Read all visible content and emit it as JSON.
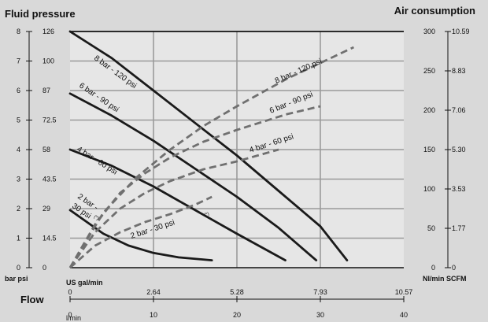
{
  "chart_data": {
    "type": "line",
    "title_left": "Fluid pressure",
    "title_right": "Air consumption",
    "xlabel": "Flow",
    "x_unit_top": "US gal/min",
    "x_unit_bottom": "l/min",
    "y_unit_left": "bar psi",
    "y_unit_right": "Nl/min SCFM",
    "xlim_lpm": [
      0,
      40
    ],
    "ylim_bar": [
      0,
      8
    ],
    "ylim_air_nlmin": [
      0,
      300
    ],
    "x_ticks_lpm": [
      "0",
      "10",
      "20",
      "30",
      "40"
    ],
    "x_ticks_gal": [
      "0",
      "2.64",
      "5.28",
      "7.93",
      "10.57"
    ],
    "y_ticks_bar": [
      "0",
      "1",
      "2",
      "3",
      "4",
      "5",
      "6",
      "7",
      "8"
    ],
    "y_ticks_psi": [
      "0",
      "14.5",
      "29",
      "43.5",
      "58",
      "72.5",
      "87",
      "100",
      "126"
    ],
    "y_ticks_air_nl": [
      "0",
      "50",
      "100",
      "150",
      "200",
      "250",
      "300"
    ],
    "y_ticks_air_scfm": [
      "0",
      "1.77",
      "3.53",
      "5.30",
      "7.06",
      "8.83",
      "10.59"
    ],
    "grid": true,
    "pressure_series": [
      {
        "name": "8 bar - 120 psi",
        "x": [
          0,
          5,
          10,
          15,
          20,
          25,
          30,
          33.2
        ],
        "y": [
          8.0,
          7.1,
          6.0,
          4.9,
          3.8,
          2.6,
          1.4,
          0.25
        ]
      },
      {
        "name": "6 bar - 90 psi",
        "x": [
          0,
          5,
          10,
          15,
          20,
          25,
          29.5
        ],
        "y": [
          5.9,
          5.15,
          4.3,
          3.35,
          2.4,
          1.35,
          0.25
        ]
      },
      {
        "name": "4 bar - 60 psi",
        "x": [
          0,
          5,
          10,
          15,
          20,
          25.8
        ],
        "y": [
          4.0,
          3.45,
          2.75,
          1.95,
          1.15,
          0.25
        ]
      },
      {
        "name": "2 bar - 30 psi",
        "x": [
          0,
          2,
          4,
          7,
          10,
          13,
          17
        ],
        "y": [
          1.95,
          1.55,
          1.15,
          0.75,
          0.5,
          0.35,
          0.25
        ]
      }
    ],
    "air_series": [
      {
        "name": "8 bar - 120 psi",
        "x": [
          0,
          4,
          8,
          12,
          16,
          20,
          26,
          34
        ],
        "y": [
          0,
          70,
          115,
          150,
          180,
          205,
          240,
          280
        ]
      },
      {
        "name": "6 bar - 90 psi",
        "x": [
          0,
          3,
          6,
          9,
          12,
          16,
          20,
          26,
          30
        ],
        "y": [
          0,
          55,
          95,
          120,
          140,
          160,
          175,
          195,
          205
        ]
      },
      {
        "name": "4 bar - 60 psi",
        "x": [
          0,
          3,
          6,
          9,
          12,
          16,
          20,
          25
        ],
        "y": [
          0,
          45,
          75,
          95,
          110,
          125,
          135,
          150
        ]
      },
      {
        "name": "2 bar - 30 psi",
        "x": [
          0,
          3,
          6,
          9,
          12,
          15,
          17
        ],
        "y": [
          0,
          28,
          45,
          58,
          68,
          80,
          90
        ]
      }
    ],
    "labels": {
      "p8": "8 bar - 120 psi",
      "p6": "6 bar - 90 psi",
      "p4": "4 bar - 60 psi",
      "p2a": "2 bar -",
      "p2b": "30 psi",
      "p2star": "(*)",
      "a8": "8 bar - 120 psi",
      "a6": "6 bar - 90 psi",
      "a4": "4 bar - 60 psi",
      "a2": "2 bar - 30 psi",
      "a2star": "(*)"
    }
  }
}
